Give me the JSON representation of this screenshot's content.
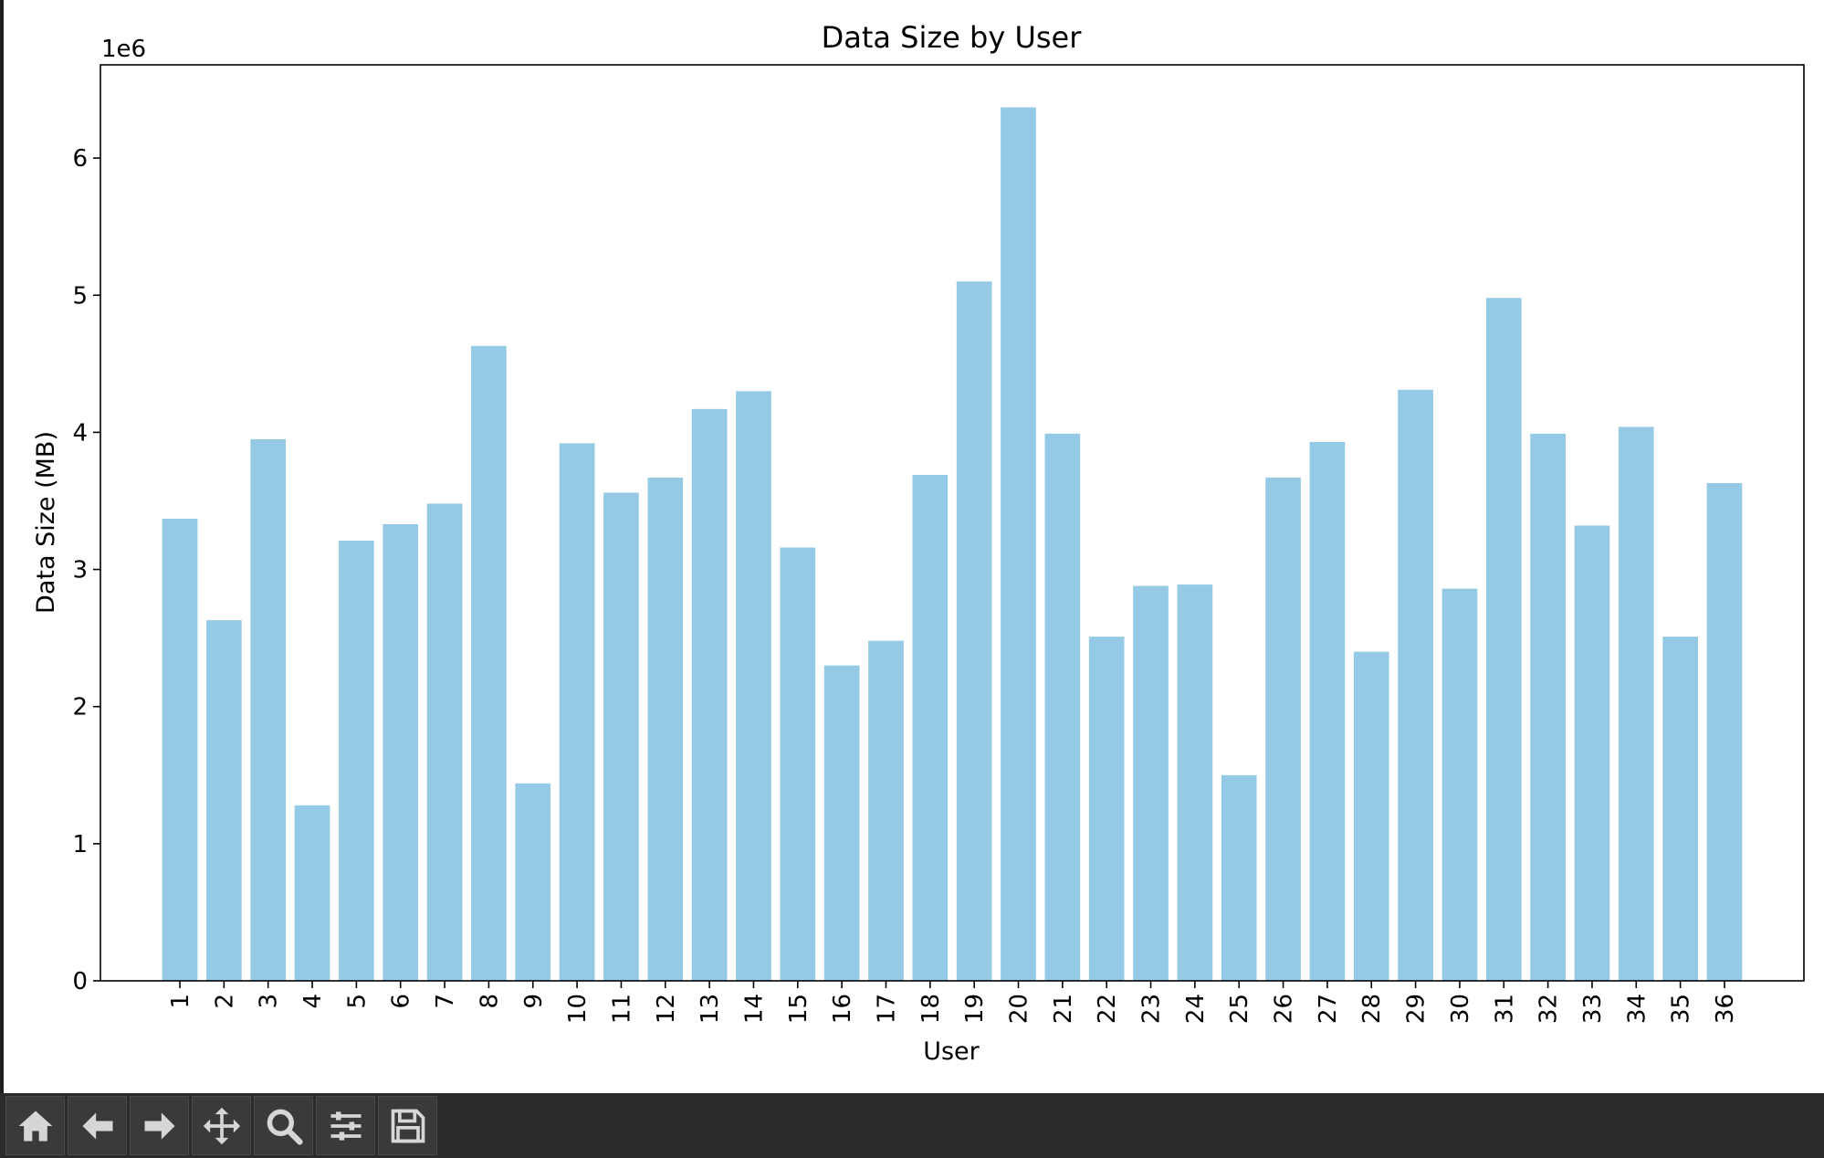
{
  "toolbar": {
    "buttons": [
      {
        "name": "home",
        "icon": "home-icon"
      },
      {
        "name": "back",
        "icon": "arrow-left-icon"
      },
      {
        "name": "forward",
        "icon": "arrow-right-icon"
      },
      {
        "name": "pan",
        "icon": "move-icon"
      },
      {
        "name": "zoom",
        "icon": "magnifier-icon"
      },
      {
        "name": "configure",
        "icon": "sliders-icon"
      },
      {
        "name": "save",
        "icon": "floppy-icon"
      }
    ]
  },
  "colors": {
    "bar": "#95CAE6",
    "toolbar_bg": "#2b2b2b",
    "icon": "#d6d6d6"
  },
  "chart_data": {
    "type": "bar",
    "title": "Data Size by User",
    "xlabel": "User",
    "ylabel": "Data Size (MB)",
    "y_offset_label": "1e6",
    "ylim": [
      0,
      6.68
    ],
    "yticks": [
      0,
      1,
      2,
      3,
      4,
      5,
      6
    ],
    "grid": false,
    "categories": [
      "1",
      "2",
      "3",
      "4",
      "5",
      "6",
      "7",
      "8",
      "9",
      "10",
      "11",
      "12",
      "13",
      "14",
      "15",
      "16",
      "17",
      "18",
      "19",
      "20",
      "21",
      "22",
      "23",
      "24",
      "25",
      "26",
      "27",
      "28",
      "29",
      "30",
      "31",
      "32",
      "33",
      "34",
      "35",
      "36"
    ],
    "values": [
      3.37,
      2.63,
      3.95,
      1.28,
      3.21,
      3.33,
      3.48,
      4.63,
      1.44,
      3.92,
      3.56,
      3.67,
      4.17,
      4.3,
      3.16,
      2.3,
      2.48,
      3.69,
      5.1,
      6.37,
      3.99,
      2.51,
      2.88,
      2.89,
      1.5,
      3.67,
      3.93,
      2.4,
      4.31,
      2.86,
      4.98,
      3.99,
      3.32,
      4.04,
      2.51,
      3.63
    ]
  }
}
